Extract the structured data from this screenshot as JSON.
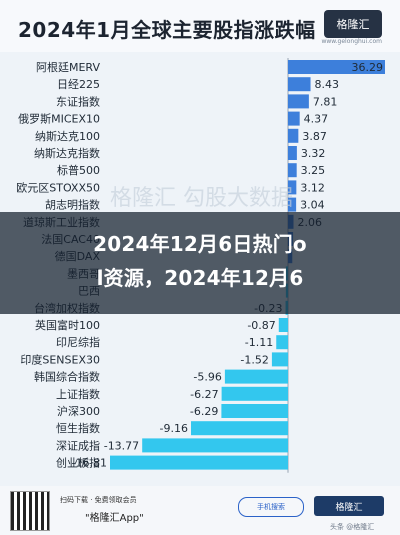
{
  "header": {
    "title": "2024年1月全球主要股指涨跌幅",
    "logo": "格隆汇",
    "logo_url": "www.gelonghui.com"
  },
  "chart_data": {
    "type": "bar",
    "orientation": "horizontal",
    "categories": [
      "阿根廷MERV",
      "日经225",
      "东证指数",
      "俄罗斯MICEX10",
      "纳斯达克100",
      "纳斯达克指数",
      "标普500",
      "欧元区STOXX50",
      "胡志明指数",
      "道琼斯工业指数",
      "法国CAC40",
      "德国DAX",
      "墨西哥",
      "巴西",
      "台湾加权指数",
      "英国富时100",
      "印尼综指",
      "印度SENSEX30",
      "韩国综合指数",
      "上证指数",
      "沪深300",
      "恒生指数",
      "深证成指",
      "创业板指"
    ],
    "values": [
      36.29,
      8.43,
      7.81,
      4.37,
      3.87,
      3.32,
      3.25,
      3.12,
      3.04,
      2.06,
      1.9,
      1.6,
      -0.2,
      -0.2,
      -0.23,
      -0.87,
      -1.11,
      -1.52,
      -5.96,
      -6.27,
      -6.29,
      -9.16,
      -13.77,
      -16.81
    ],
    "labels": [
      "36.29",
      "8.43",
      "7.81",
      "4.37",
      "3.87",
      "3.32",
      "3.25",
      "3.12",
      "3.04",
      "2.06",
      "",
      "",
      "",
      "",
      "-0.23",
      "-0.87",
      "-1.11",
      "-1.52",
      "-5.96",
      "-6.27",
      "-6.29",
      "-9.16",
      "-13.77",
      "-16.81"
    ],
    "colors": {
      "positive": "#3d7fdb",
      "negative": "#33c7ee"
    },
    "watermark": "格隆汇   勾股大数据"
  },
  "overlay": {
    "line1": "2024年12月6日热门o",
    "line2": "l资源，2024年12月6"
  },
  "footer": {
    "scan_text": "扫码下载 · 免费领取会员",
    "app_text": "\"格隆汇App\"",
    "search_text": "手机搜索",
    "brand_text": "格隆汇",
    "credit": "头条 @格隆汇"
  }
}
